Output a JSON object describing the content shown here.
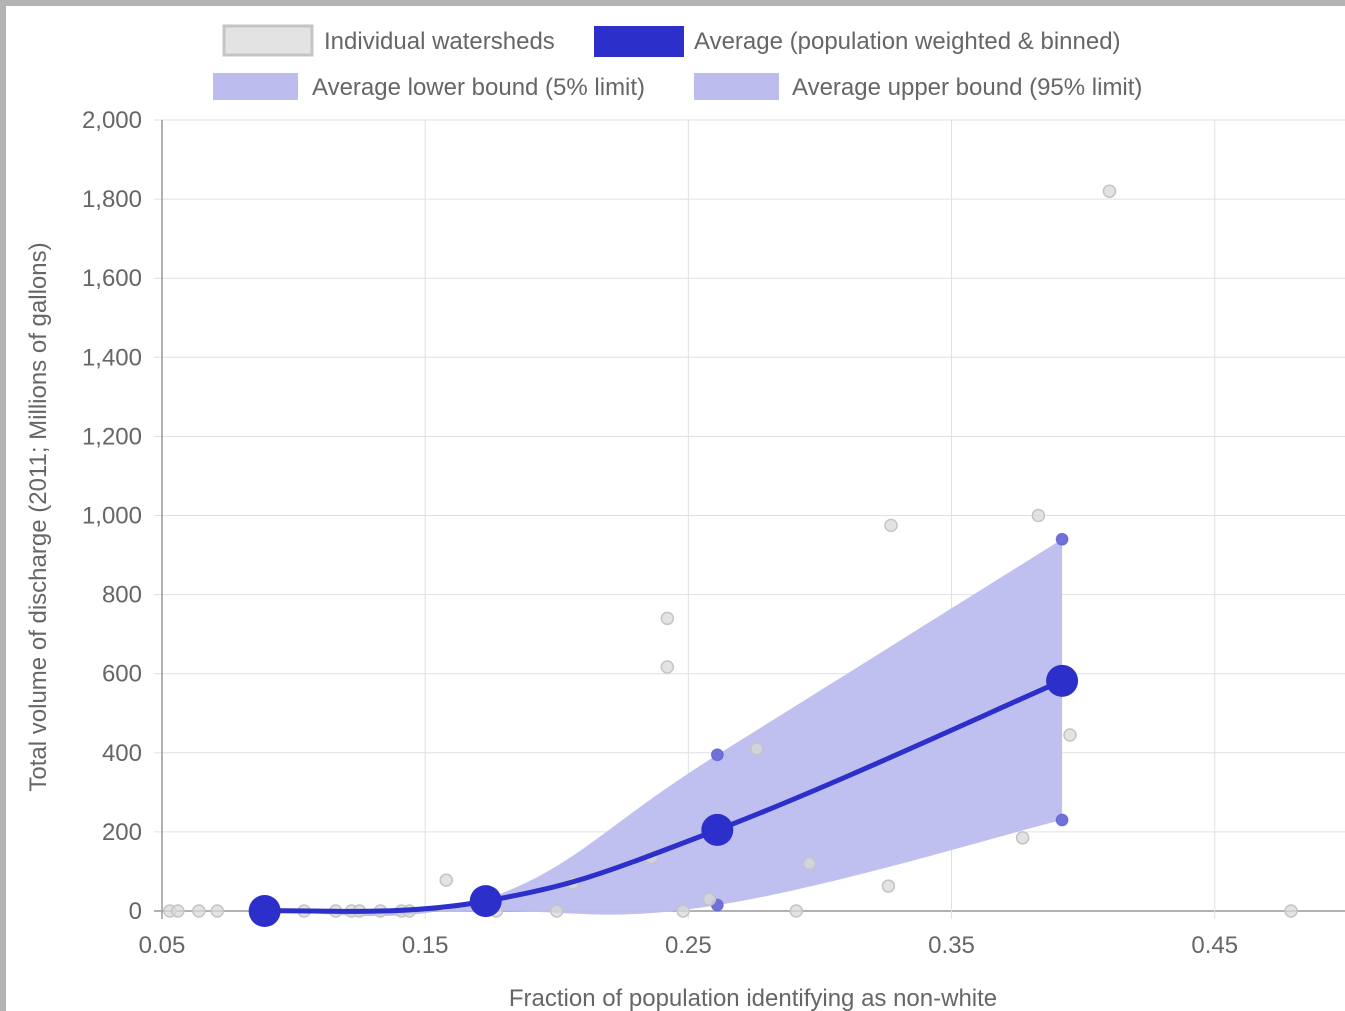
{
  "chart_data": {
    "type": "line",
    "xlabel": "Fraction of population identifying as non-white",
    "ylabel": "Total volume of discharge (2011; Millions of gallons)",
    "xlim": [
      0.05,
      0.5
    ],
    "ylim": [
      0,
      2000
    ],
    "x_ticks": [
      "0.05",
      "0.15",
      "0.25",
      "0.35",
      "0.45"
    ],
    "x_tick_values": [
      0.05,
      0.15,
      0.25,
      0.35,
      0.45
    ],
    "y_ticks": [
      "0",
      "200",
      "400",
      "600",
      "800",
      "1,000",
      "1,200",
      "1,400",
      "1,600",
      "1,800",
      "2,000"
    ],
    "y_tick_values": [
      0,
      200,
      400,
      600,
      800,
      1000,
      1200,
      1400,
      1600,
      1800,
      2000
    ],
    "grid": true,
    "legend_position": "top",
    "legend": [
      {
        "label": "Individual watersheds",
        "swatch": "scatter"
      },
      {
        "label": "Average (population weighted & binned)",
        "swatch": "average"
      },
      {
        "label": "Average lower bound (5% limit)",
        "swatch": "band"
      },
      {
        "label": "Average upper bound (95% limit)",
        "swatch": "band"
      }
    ],
    "colors": {
      "average": "#2c2fc9",
      "band": "#bcbdee",
      "band_marker": "#6f71d6",
      "scatter_fill": "#d9d9d9",
      "scatter_stroke": "#c4c4c4",
      "grid": "#e0e0e0",
      "axis": "#999999"
    },
    "series": [
      {
        "name": "Individual watersheds",
        "points": [
          [
            0.053,
            0
          ],
          [
            0.056,
            0
          ],
          [
            0.064,
            0
          ],
          [
            0.071,
            0
          ],
          [
            0.104,
            0
          ],
          [
            0.116,
            0
          ],
          [
            0.122,
            0
          ],
          [
            0.125,
            0
          ],
          [
            0.133,
            0
          ],
          [
            0.141,
            0
          ],
          [
            0.144,
            0
          ],
          [
            0.158,
            78
          ],
          [
            0.177,
            0
          ],
          [
            0.2,
            0
          ],
          [
            0.206,
            70
          ],
          [
            0.236,
            135
          ],
          [
            0.242,
            740
          ],
          [
            0.242,
            617
          ],
          [
            0.248,
            0
          ],
          [
            0.258,
            30
          ],
          [
            0.276,
            410
          ],
          [
            0.291,
            0
          ],
          [
            0.296,
            120
          ],
          [
            0.326,
            63
          ],
          [
            0.327,
            975
          ],
          [
            0.377,
            185
          ],
          [
            0.383,
            1000
          ],
          [
            0.395,
            445
          ],
          [
            0.41,
            1820
          ],
          [
            0.479,
            0
          ]
        ]
      },
      {
        "name": "Average (population weighted & binned)",
        "points": [
          [
            0.089,
            0
          ],
          [
            0.173,
            25
          ],
          [
            0.261,
            205
          ],
          [
            0.392,
            582
          ]
        ]
      },
      {
        "name": "Average lower bound (5% limit)",
        "points": [
          [
            0.089,
            0
          ],
          [
            0.173,
            0
          ],
          [
            0.261,
            15
          ],
          [
            0.392,
            230
          ]
        ]
      },
      {
        "name": "Average upper bound (95% limit)",
        "points": [
          [
            0.089,
            0
          ],
          [
            0.173,
            30
          ],
          [
            0.261,
            395
          ],
          [
            0.392,
            940
          ]
        ]
      }
    ]
  }
}
